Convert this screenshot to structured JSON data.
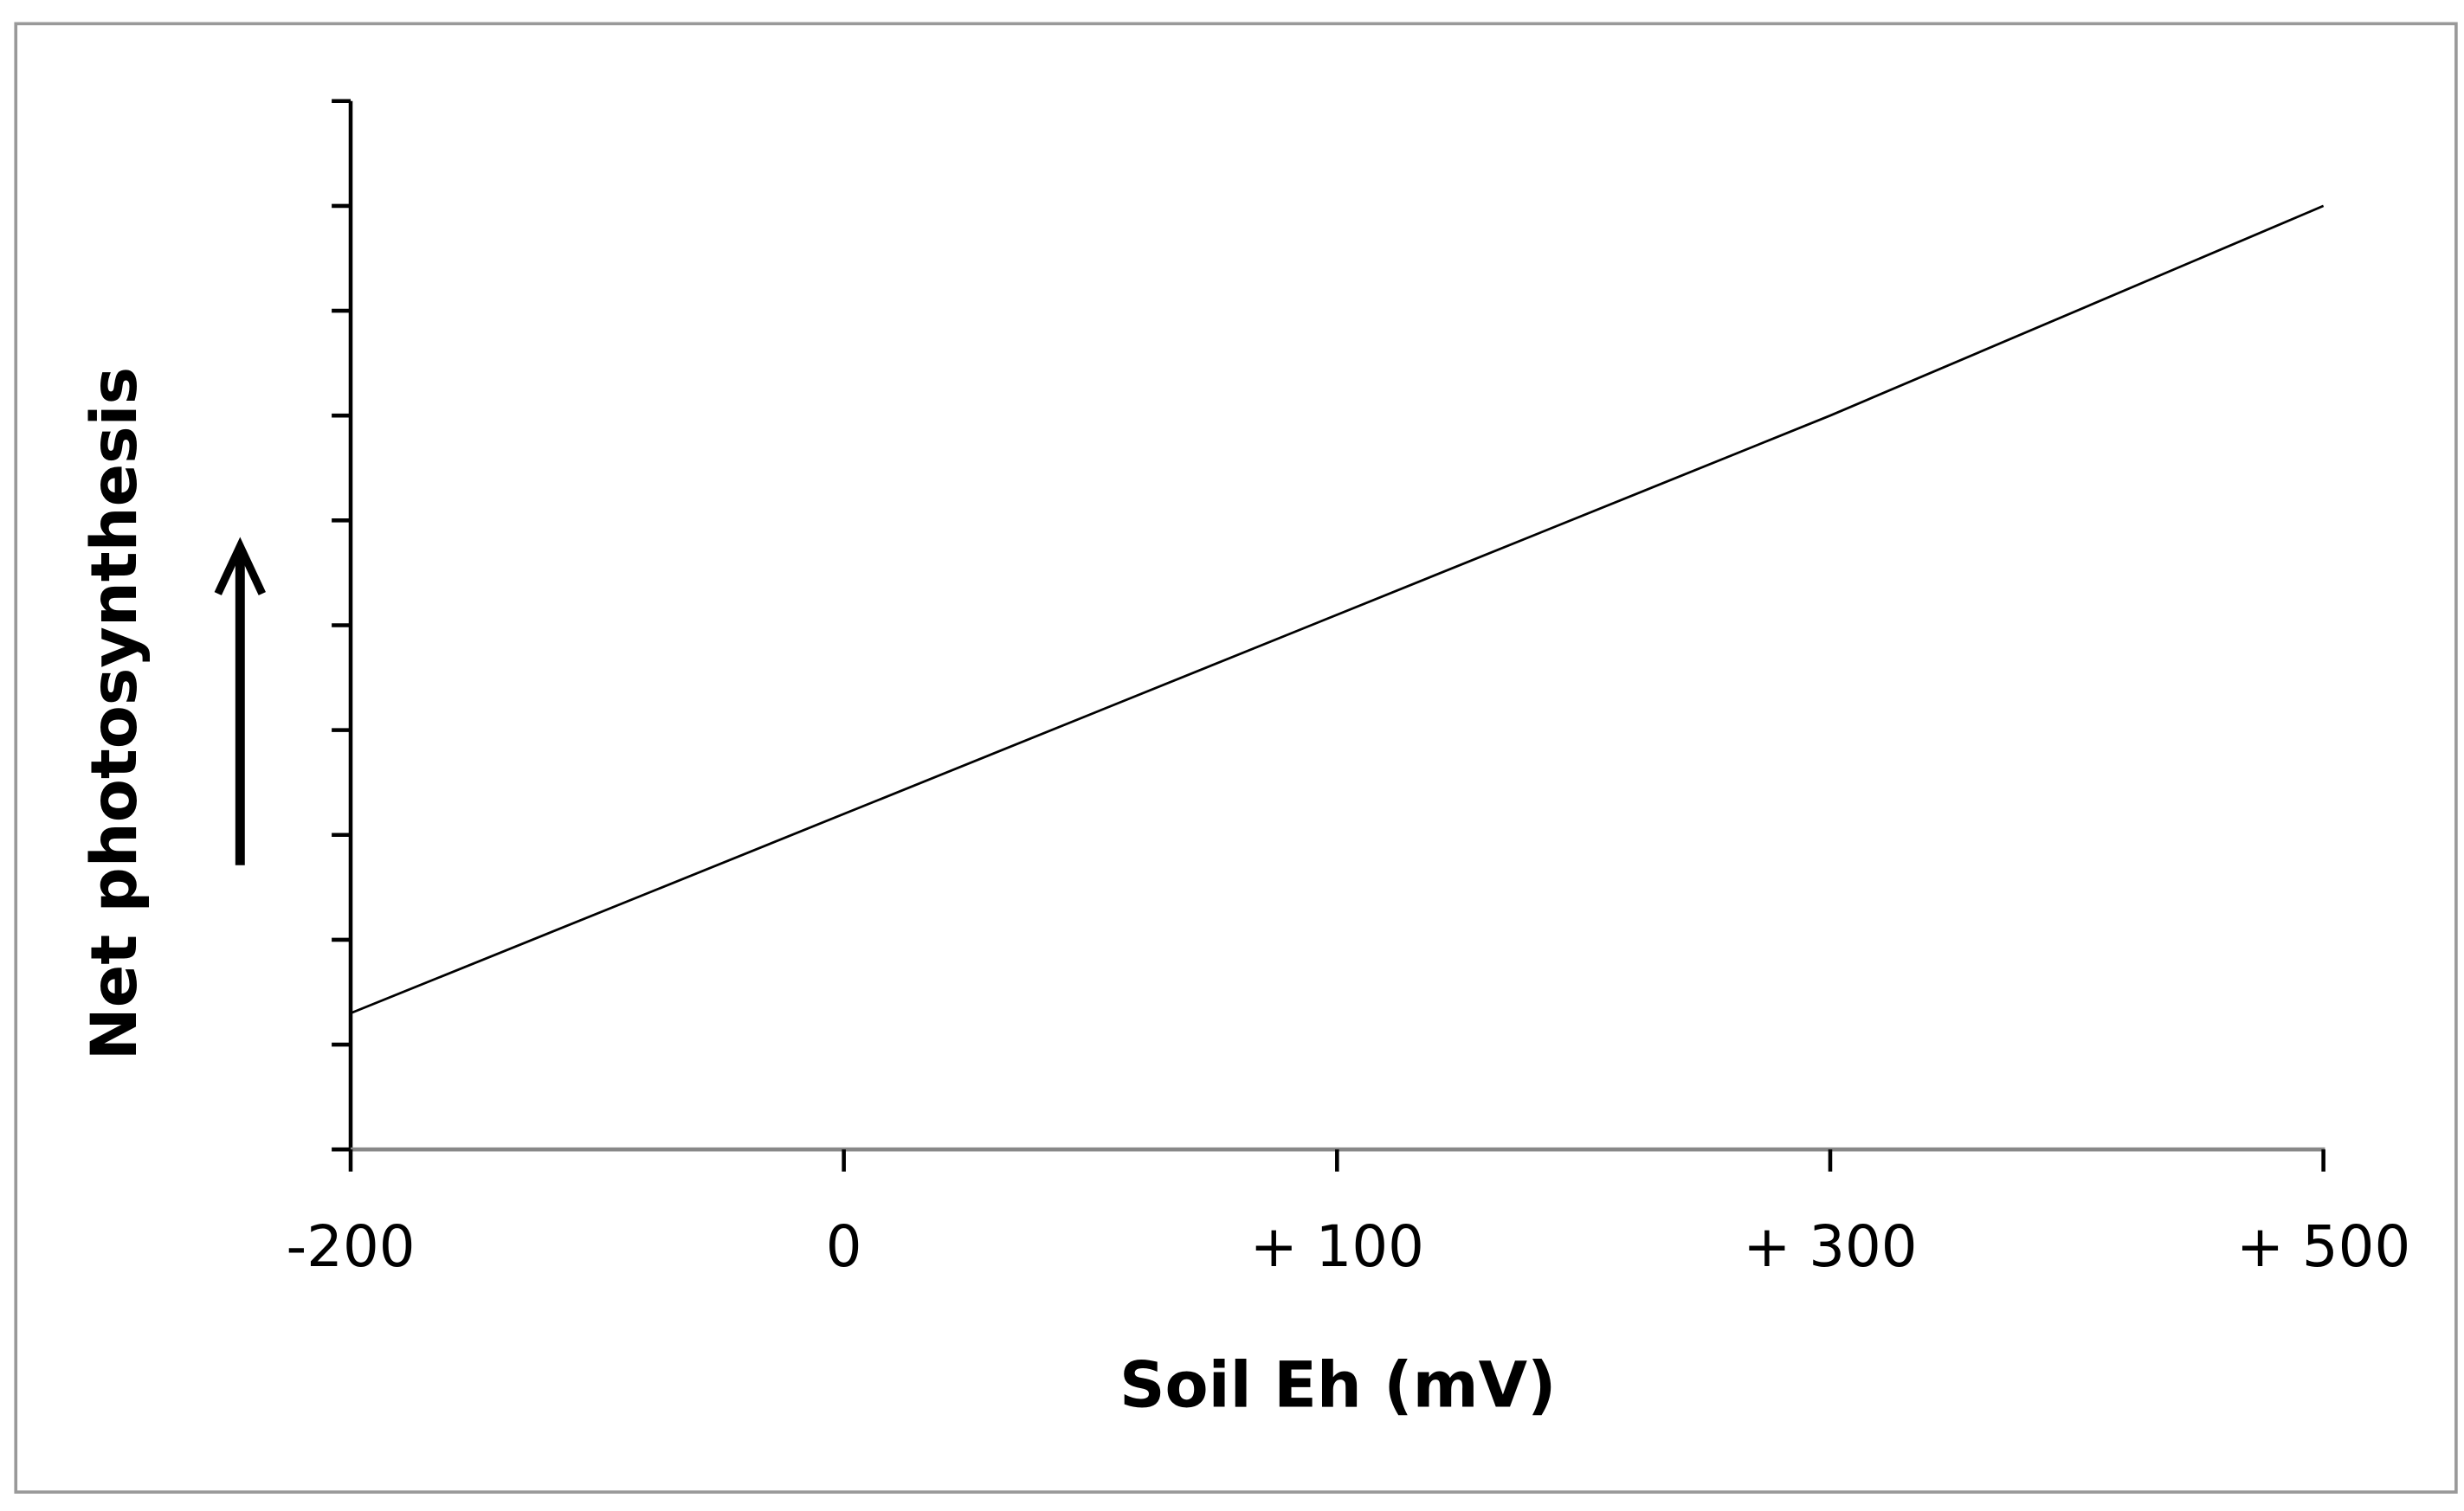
{
  "chart_data": {
    "type": "line",
    "xlabel": "Soil Eh (mV)",
    "ylabel": "Net photosynthesis",
    "categories": [
      "-200",
      "0",
      "+ 100",
      "+ 300",
      "+ 500"
    ],
    "values": [
      1.3,
      3.2,
      5.1,
      7.0,
      9.0
    ],
    "color": "#000000",
    "ylim": [
      0,
      10
    ],
    "yticks": [
      0,
      1,
      2,
      3,
      4,
      5,
      6,
      7,
      8,
      9,
      10
    ]
  }
}
